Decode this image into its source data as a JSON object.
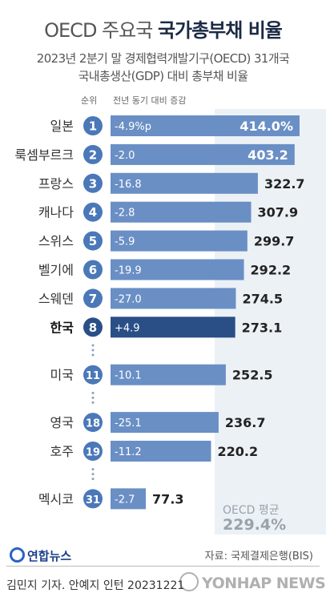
{
  "title": {
    "light": "OECD 주요국",
    "bold": "국가총부채 비율"
  },
  "subtitle": {
    "line1": "2023년 2분기 말 경제협력개발기구(OECD) 31개국",
    "line2": "국내총생산(GDP) 대비 총부채 비율"
  },
  "columns": {
    "rank": "순위",
    "change": "전년 동기 대비 증감"
  },
  "colors": {
    "bar": "#6a8fc5",
    "highlight_bar": "#2a4f86",
    "rank_circle": "#4a78b8",
    "band": "#ecf1f6"
  },
  "chart_data": {
    "type": "bar",
    "orientation": "horizontal",
    "unit": "%",
    "categories": [
      "일본",
      "룩셈부르크",
      "프랑스",
      "캐나다",
      "스위스",
      "벨기에",
      "스웨덴",
      "한국",
      "미국",
      "영국",
      "호주",
      "멕시코"
    ],
    "ranks": [
      "1",
      "2",
      "3",
      "4",
      "5",
      "6",
      "7",
      "8",
      "11",
      "18",
      "19",
      "31"
    ],
    "values": [
      414.0,
      403.2,
      322.7,
      307.9,
      299.7,
      292.2,
      274.5,
      273.1,
      252.5,
      236.7,
      220.2,
      77.3
    ],
    "value_labels": [
      "414.0%",
      "403.2",
      "322.7",
      "307.9",
      "299.7",
      "292.2",
      "274.5",
      "273.1",
      "252.5",
      "236.7",
      "220.2",
      "77.3"
    ],
    "change_labels": [
      "-4.9%p",
      "-2.0",
      "-16.8",
      "-2.8",
      "-5.9",
      "-19.9",
      "-27.0",
      "+4.9",
      "-10.1",
      "-25.1",
      "-11.2",
      "-2.7"
    ],
    "highlight": "한국",
    "gaps_after": [
      "한국",
      "미국",
      "호주"
    ],
    "reference": {
      "label": "OECD 평균",
      "value": 229.4,
      "value_label": "229.4%"
    }
  },
  "footer": {
    "logo": "연합뉴스",
    "source": "자료: 국제결제은행(BIS)",
    "credit": "김민지 기자. 안예지 인턴  20231221",
    "watermark": "YONHAP NEWS"
  }
}
